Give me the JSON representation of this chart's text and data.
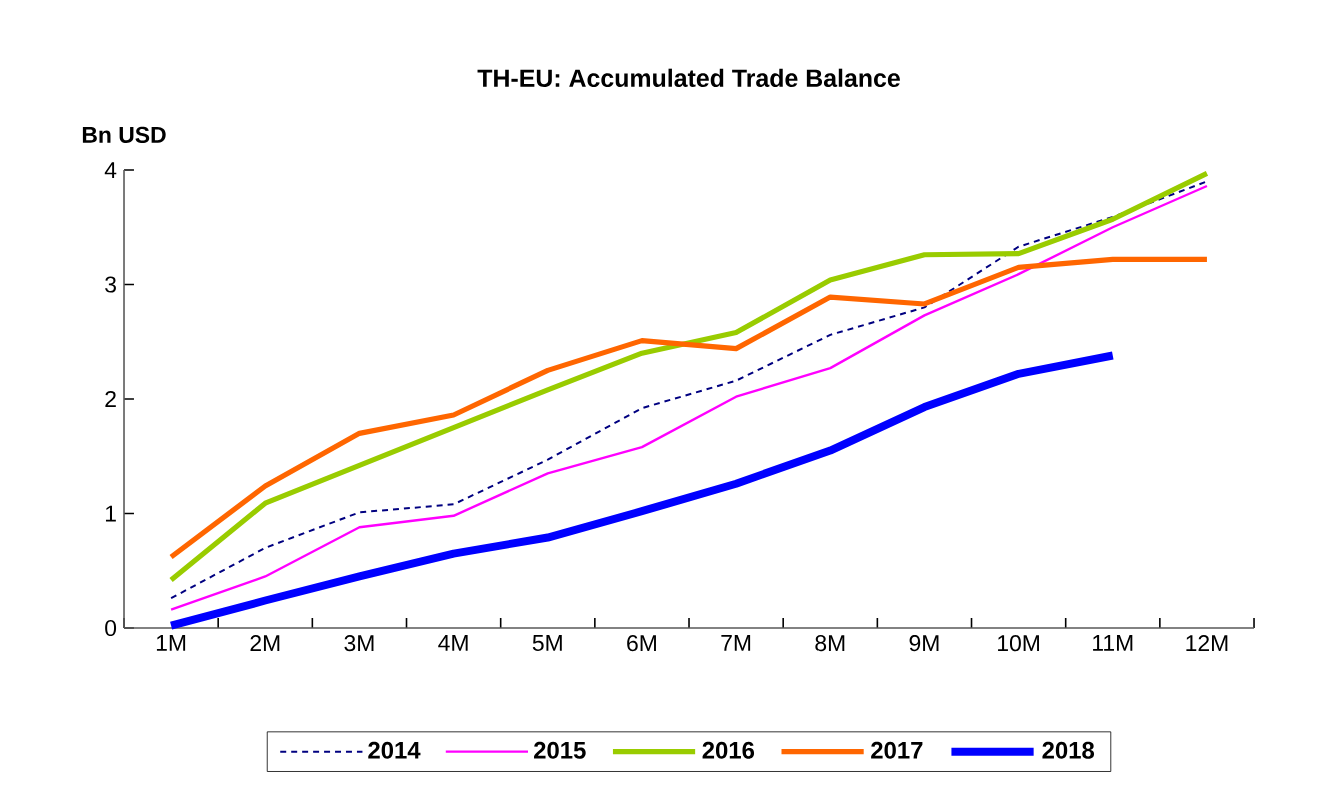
{
  "chart_data": {
    "type": "line",
    "title": "TH-EU: Accumulated Trade Balance",
    "ylabel": "Bn USD",
    "categories": [
      "1M",
      "2M",
      "3M",
      "4M",
      "5M",
      "6M",
      "7M",
      "8M",
      "9M",
      "10M",
      "11M",
      "12M"
    ],
    "ylim": [
      0,
      4
    ],
    "yticks": [
      0,
      1,
      2,
      3,
      4
    ],
    "grid": false,
    "legend": "bottom",
    "marker": "none",
    "series": [
      {
        "name": "2014",
        "color": "#000080",
        "line_style": "dashed",
        "values": [
          0.26,
          0.7,
          1.01,
          1.08,
          1.47,
          1.92,
          2.16,
          2.56,
          2.8,
          3.33,
          3.59,
          3.9
        ]
      },
      {
        "name": "2015",
        "color": "#ff00ff",
        "values": [
          0.16,
          0.45,
          0.88,
          0.98,
          1.35,
          1.58,
          2.02,
          2.27,
          2.73,
          3.09,
          3.5,
          3.86
        ]
      },
      {
        "name": "2016",
        "color": "#99cc00",
        "values": [
          0.42,
          1.09,
          1.42,
          1.75,
          2.08,
          2.4,
          2.58,
          3.04,
          3.26,
          3.27,
          3.57,
          3.97
        ]
      },
      {
        "name": "2017",
        "color": "#ff6600",
        "values": [
          0.62,
          1.24,
          1.7,
          1.86,
          2.25,
          2.51,
          2.44,
          2.89,
          2.83,
          3.15,
          3.22,
          3.22
        ]
      },
      {
        "name": "2018",
        "color": "#0000ff",
        "values": [
          0.02,
          0.24,
          0.45,
          0.65,
          0.79,
          1.02,
          1.26,
          1.55,
          1.93,
          2.22,
          2.38,
          null
        ]
      }
    ]
  }
}
